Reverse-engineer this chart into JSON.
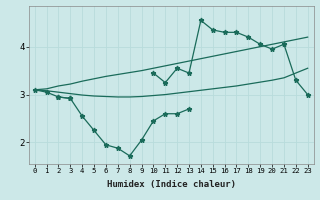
{
  "xlabel": "Humidex (Indice chaleur)",
  "bg_color": "#cce8e8",
  "grid_color": "#b0d8d8",
  "line_color": "#1a6b5a",
  "x": [
    0,
    1,
    2,
    3,
    4,
    5,
    6,
    7,
    8,
    9,
    10,
    11,
    12,
    13,
    14,
    15,
    16,
    17,
    18,
    19,
    20,
    21,
    22,
    23
  ],
  "line_upper_jagged": [
    3.1,
    3.05,
    2.95,
    2.92,
    null,
    null,
    null,
    null,
    null,
    null,
    3.45,
    3.25,
    3.55,
    3.45,
    4.55,
    4.35,
    4.3,
    4.3,
    4.2,
    4.05,
    3.95,
    4.05,
    3.3,
    3.0
  ],
  "line_lower_jagged": [
    null,
    null,
    2.95,
    2.92,
    2.55,
    2.25,
    1.95,
    1.88,
    1.72,
    2.05,
    2.45,
    2.6,
    2.6,
    2.7,
    null,
    null,
    null,
    null,
    null,
    null,
    null,
    null,
    null,
    null
  ],
  "line_lower_trend": [
    3.1,
    3.08,
    3.05,
    3.02,
    2.99,
    2.97,
    2.96,
    2.95,
    2.95,
    2.96,
    2.98,
    3.0,
    3.03,
    3.06,
    3.09,
    3.12,
    3.15,
    3.18,
    3.22,
    3.26,
    3.3,
    3.35,
    3.45,
    3.55
  ],
  "line_upper_trend": [
    3.1,
    3.12,
    3.18,
    3.22,
    3.28,
    3.33,
    3.38,
    3.42,
    3.46,
    3.5,
    3.55,
    3.6,
    3.65,
    3.7,
    3.75,
    3.8,
    3.85,
    3.9,
    3.95,
    4.0,
    4.05,
    4.1,
    4.15,
    4.2
  ],
  "ylim": [
    1.55,
    4.85
  ],
  "yticks": [
    2,
    3,
    4
  ],
  "xticks": [
    0,
    1,
    2,
    3,
    4,
    5,
    6,
    7,
    8,
    9,
    10,
    11,
    12,
    13,
    14,
    15,
    16,
    17,
    18,
    19,
    20,
    21,
    22,
    23
  ]
}
